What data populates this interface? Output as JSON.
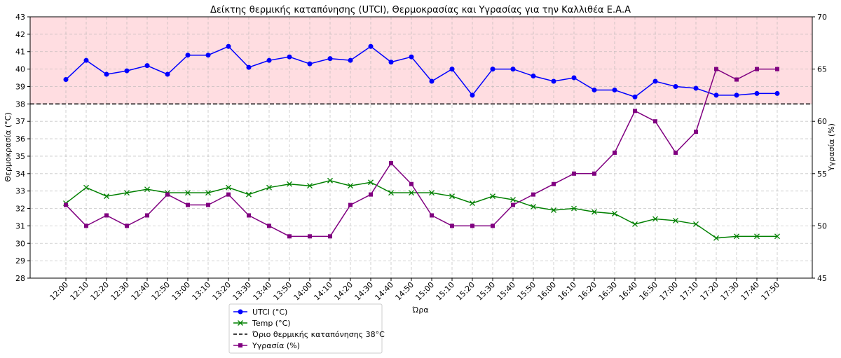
{
  "chart_data": {
    "type": "line",
    "title": "Δείκτης θερμικής καταπόνησης (UTCI), Θερμοκρασίας και Υγρασίας για την Καλλιθέα Ε.Α.Α",
    "xlabel": "Ώρα",
    "ylabel": "Θερμοκρασία (°C)",
    "y2label": "Υγρασία (%)",
    "ylim": [
      28,
      43
    ],
    "y2lim": [
      45,
      70
    ],
    "yticks": [
      28,
      29,
      30,
      31,
      32,
      33,
      34,
      35,
      36,
      37,
      38,
      39,
      40,
      41,
      42,
      43
    ],
    "y2ticks": [
      45,
      50,
      55,
      60,
      65,
      70
    ],
    "grid": true,
    "legend_position": "bottom-left (outside)",
    "threshold": {
      "value": 38,
      "label": "Όριο θερμικής καταπόνησης 38°C",
      "color": "#000000"
    },
    "shaded_region": {
      "from": 38,
      "to": 43,
      "color": "#ffdde1"
    },
    "x": [
      "12:00",
      "12:10",
      "12:20",
      "12:30",
      "12:40",
      "12:50",
      "13:00",
      "13:10",
      "13:20",
      "13:30",
      "13:40",
      "13:50",
      "14:00",
      "14:10",
      "14:20",
      "14:30",
      "14:40",
      "14:50",
      "15:00",
      "15:10",
      "15:20",
      "15:30",
      "15:40",
      "15:50",
      "16:00",
      "16:10",
      "16:20",
      "16:30",
      "16:40",
      "16:50",
      "17:00",
      "17:10",
      "17:20",
      "17:30",
      "17:40",
      "17:50"
    ],
    "series": [
      {
        "name": "UTCI (°C)",
        "axis": "left",
        "marker": "circle",
        "color": "#0000ff",
        "values": [
          39.4,
          40.5,
          39.7,
          39.9,
          40.2,
          39.7,
          40.8,
          40.8,
          41.3,
          40.1,
          40.5,
          40.7,
          40.3,
          40.6,
          40.5,
          41.3,
          40.4,
          40.7,
          39.3,
          40.0,
          38.5,
          40.0,
          40.0,
          39.6,
          39.3,
          39.5,
          38.8,
          38.8,
          38.4,
          39.3,
          39.0,
          38.9,
          38.5,
          38.5,
          38.6,
          38.6
        ]
      },
      {
        "name": "Temp (°C)",
        "axis": "left",
        "marker": "x",
        "color": "#008000",
        "values": [
          32.3,
          33.2,
          32.7,
          32.9,
          33.1,
          32.9,
          32.9,
          32.9,
          33.2,
          32.8,
          33.2,
          33.4,
          33.3,
          33.6,
          33.3,
          33.5,
          32.9,
          32.9,
          32.9,
          32.7,
          32.3,
          32.7,
          32.5,
          32.1,
          31.9,
          32.0,
          31.8,
          31.7,
          31.1,
          31.4,
          31.3,
          31.1,
          30.3,
          30.4,
          30.4,
          30.4
        ]
      },
      {
        "name": "Υγρασία (%)",
        "axis": "right",
        "marker": "square",
        "color": "#800080",
        "values": [
          52,
          50,
          51,
          50,
          51,
          53,
          52,
          52,
          53,
          51,
          50,
          49,
          49,
          49,
          52,
          53,
          56,
          54,
          51,
          50,
          50,
          50,
          52,
          53,
          54,
          55,
          55,
          57,
          61,
          60,
          57,
          59,
          65,
          64,
          65,
          65
        ]
      }
    ]
  }
}
